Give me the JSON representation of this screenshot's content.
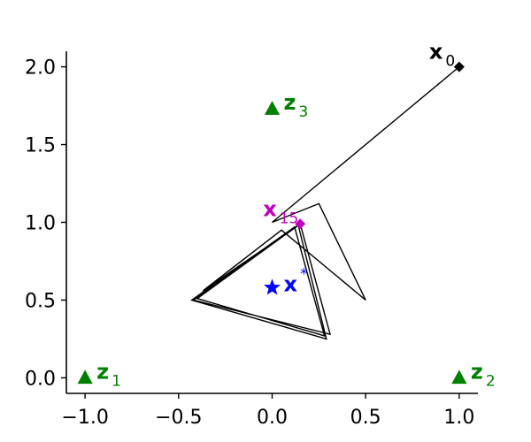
{
  "chart_data": {
    "type": "scatter",
    "title": "",
    "xlabel": "",
    "ylabel": "",
    "xlim": [
      -1.1,
      1.1
    ],
    "ylim": [
      -0.1,
      2.1
    ],
    "grid": false,
    "x_ticks": [
      -1.0,
      -0.5,
      0.0,
      0.5,
      1.0
    ],
    "x_tick_labels": [
      "−1.0",
      "−0.5",
      "0.0",
      "0.5",
      "1.0"
    ],
    "y_ticks": [
      0.0,
      0.5,
      1.0,
      1.5,
      2.0
    ],
    "y_tick_labels": [
      "0.0",
      "0.5",
      "1.0",
      "1.5",
      "2.0"
    ],
    "colors": {
      "path": "#000000",
      "z": "#008000",
      "x_star": "#0000ff",
      "x15": "#c000c0",
      "x0": "#000000"
    },
    "path": {
      "points": [
        [
          1.0,
          2.0
        ],
        [
          0.0,
          1.0
        ],
        [
          0.25,
          1.12
        ],
        [
          0.5,
          0.5
        ],
        [
          0.05,
          0.95
        ],
        [
          -0.37,
          0.56
        ],
        [
          0.15,
          0.99
        ],
        [
          0.31,
          0.28
        ],
        [
          -0.42,
          0.5
        ],
        [
          0.14,
          0.98
        ],
        [
          0.29,
          0.25
        ],
        [
          -0.43,
          0.5
        ],
        [
          0.12,
          0.97
        ],
        [
          0.28,
          0.27
        ],
        [
          -0.4,
          0.51
        ],
        [
          0.15,
          0.99
        ]
      ]
    },
    "anchors": [
      {
        "id": "z1",
        "label": "z",
        "sub": "1",
        "x": -1.0,
        "y": 0.0,
        "marker": "triangle"
      },
      {
        "id": "z2",
        "label": "z",
        "sub": "2",
        "x": 1.0,
        "y": 0.0,
        "marker": "triangle"
      },
      {
        "id": "z3",
        "label": "z",
        "sub": "3",
        "x": 0.0,
        "y": 1.73,
        "marker": "triangle"
      }
    ],
    "x_star": {
      "label": "x",
      "sup": "*",
      "x": 0.0,
      "y": 0.58,
      "marker": "star"
    },
    "x0": {
      "label": "x",
      "sub": "0",
      "x": 1.0,
      "y": 2.0,
      "marker": "diamond"
    },
    "x15": {
      "label": "x",
      "sub": "15",
      "x": 0.15,
      "y": 0.99,
      "marker": "diamond"
    }
  }
}
